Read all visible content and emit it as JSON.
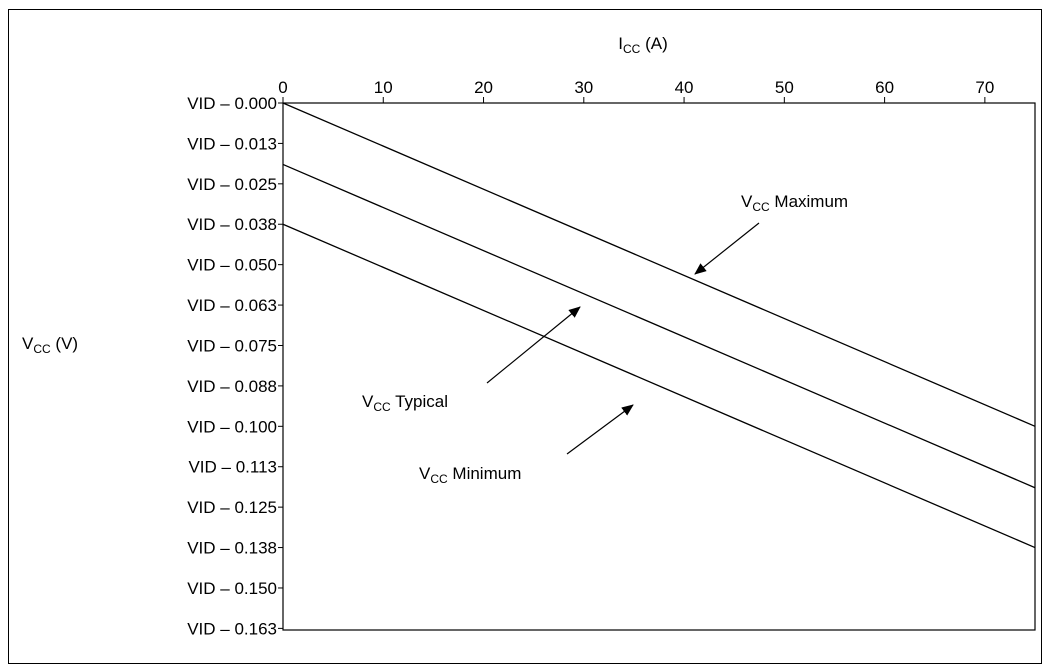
{
  "chart_data": {
    "type": "line",
    "x_axis": {
      "label_main": "I",
      "label_sub": "CC",
      "label_unit": "(A)",
      "position": "top",
      "range": [
        0,
        75
      ],
      "ticks": [
        0,
        10,
        20,
        30,
        40,
        50,
        60,
        70
      ],
      "tick_labels": [
        "0",
        "10",
        "20",
        "30",
        "40",
        "50",
        "60",
        "70"
      ]
    },
    "y_axis": {
      "label_main": "V",
      "label_sub": "CC",
      "label_unit": "(V)",
      "range": [
        -0.163,
        0
      ],
      "ticks": [
        0,
        -0.0125,
        -0.025,
        -0.0375,
        -0.05,
        -0.0625,
        -0.075,
        -0.0875,
        -0.1,
        -0.1125,
        -0.125,
        -0.1375,
        -0.15,
        -0.1625
      ],
      "tick_labels": [
        "VID – 0.000",
        "VID – 0.013",
        "VID – 0.025",
        "VID – 0.038",
        "VID – 0.050",
        "VID – 0.063",
        "VID – 0.075",
        "VID – 0.088",
        "VID – 0.100",
        "VID – 0.113",
        "VID – 0.125",
        "VID – 0.138",
        "VID – 0.150",
        "VID – 0.163"
      ]
    },
    "grid": false,
    "series": [
      {
        "name": "V<sub>CC</sub> Maximum",
        "x": [
          0,
          75
        ],
        "y": [
          0,
          -0.1
        ]
      },
      {
        "name": "V<sub>CC</sub> Typical",
        "x": [
          0,
          75
        ],
        "y": [
          -0.019,
          -0.119
        ]
      },
      {
        "name": "V<sub>CC</sub> Minimum",
        "x": [
          0,
          75
        ],
        "y": [
          -0.0375,
          -0.1375
        ]
      }
    ],
    "annotations": [
      {
        "key": "max",
        "main": "V",
        "sub": "CC",
        "rest": " Maximum",
        "points_to_series": "V<sub>CC</sub> Maximum"
      },
      {
        "key": "typ",
        "main": "V",
        "sub": "CC",
        "rest": " Typical",
        "points_to_series": "V<sub>CC</sub> Typical"
      },
      {
        "key": "min",
        "main": "V",
        "sub": "CC",
        "rest": " Minimum",
        "points_to_series": "V<sub>CC</sub> Minimum"
      }
    ]
  }
}
